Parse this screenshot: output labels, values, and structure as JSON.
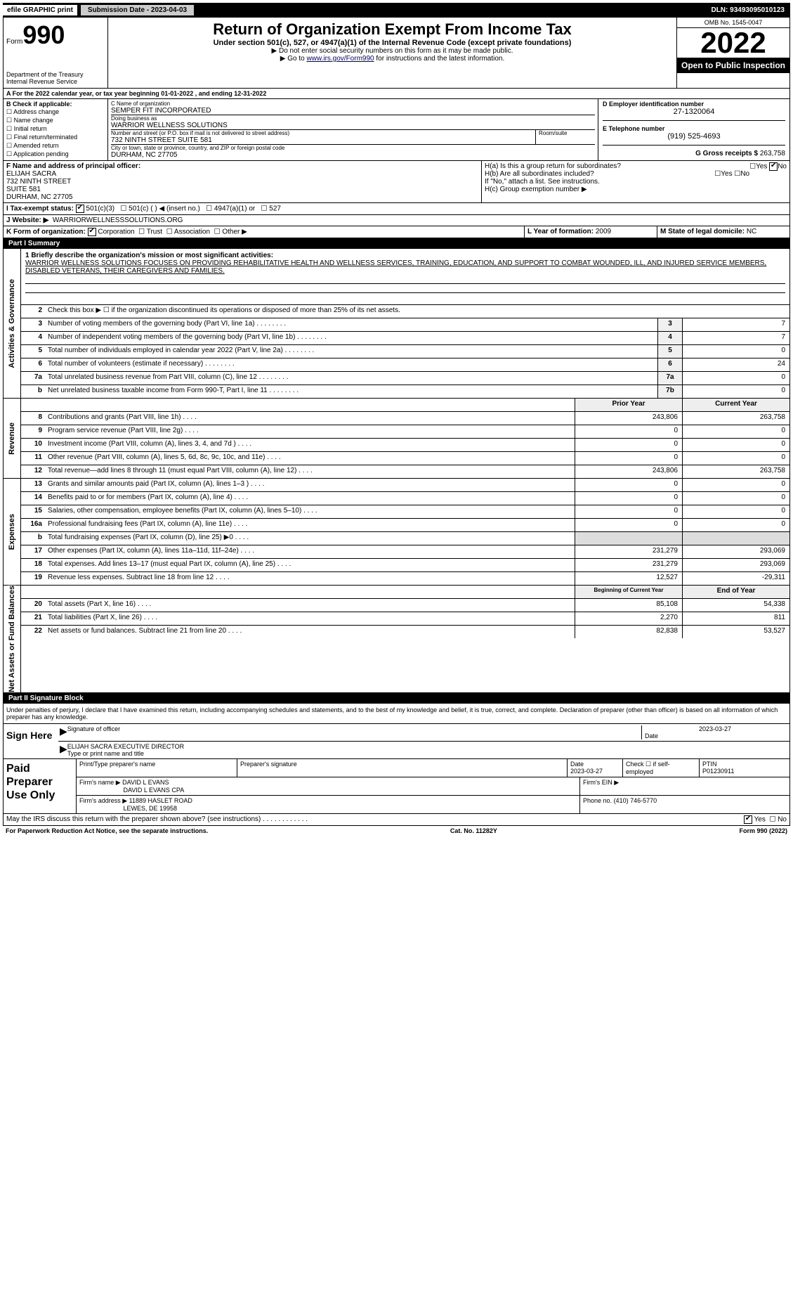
{
  "topbar": {
    "efile": "efile GRAPHIC print",
    "submission": "Submission Date - 2023-04-03",
    "dln": "DLN: 93493095010123"
  },
  "header": {
    "form_prefix": "Form",
    "form_number": "990",
    "dept": "Department of the Treasury Internal Revenue Service",
    "title": "Return of Organization Exempt From Income Tax",
    "subtitle": "Under section 501(c), 527, or 4947(a)(1) of the Internal Revenue Code (except private foundations)",
    "note1": "▶ Do not enter social security numbers on this form as it may be made public.",
    "note2_pre": "▶ Go to ",
    "note2_link": "www.irs.gov/Form990",
    "note2_post": " for instructions and the latest information.",
    "omb": "OMB No. 1545-0047",
    "year": "2022",
    "open": "Open to Public Inspection"
  },
  "row_a": "A For the 2022 calendar year, or tax year beginning 01-01-2022    , and ending 12-31-2022",
  "col_b": {
    "header": "B Check if applicable:",
    "items": [
      "Address change",
      "Name change",
      "Initial return",
      "Final return/terminated",
      "Amended return",
      "Application pending"
    ]
  },
  "block_c": {
    "name_lbl": "C Name of organization",
    "name": "SEMPER FIT INCORPORATED",
    "dba_lbl": "Doing business as",
    "dba": "WARRIOR WELLNESS SOLUTIONS",
    "addr_lbl": "Number and street (or P.O. box if mail is not delivered to street address)",
    "room_lbl": "Room/suite",
    "addr": "732 NINTH STREET SUITE 581",
    "city_lbl": "City or town, state or province, country, and ZIP or foreign postal code",
    "city": "DURHAM, NC  27705"
  },
  "block_d": {
    "lbl": "D Employer identification number",
    "val": "27-1320064"
  },
  "block_e": {
    "lbl": "E Telephone number",
    "val": "(919) 525-4693"
  },
  "block_g": {
    "lbl": "G Gross receipts $",
    "val": "263,758"
  },
  "block_f": {
    "lbl": "F  Name and address of principal officer:",
    "name": "ELIJAH SACRA",
    "addr1": "732 NINTH STREET",
    "addr2": "SUITE 581",
    "city": "DURHAM, NC  27705"
  },
  "block_h": {
    "ha": "H(a)  Is this a group return for subordinates?",
    "hb": "H(b)  Are all subordinates included?",
    "hb_note": "If \"No,\" attach a list. See instructions.",
    "hc": "H(c)  Group exemption number ▶",
    "yes": "Yes",
    "no": "No"
  },
  "row_i": {
    "lbl": "I   Tax-exempt status:",
    "opts": [
      "501(c)(3)",
      "501(c) (   ) ◀ (insert no.)",
      "4947(a)(1) or",
      "527"
    ]
  },
  "row_j": {
    "lbl": "J   Website: ▶",
    "val": "WARRIORWELLNESSSOLUTIONS.ORG"
  },
  "row_k": {
    "lbl": "K Form of organization:",
    "opts": [
      "Corporation",
      "Trust",
      "Association",
      "Other ▶"
    ]
  },
  "row_l": {
    "lbl": "L Year of formation:",
    "val": "2009"
  },
  "row_m": {
    "lbl": "M State of legal domicile:",
    "val": "NC"
  },
  "part1": "Part I    Summary",
  "section_labels": {
    "gov": "Activities & Governance",
    "rev": "Revenue",
    "exp": "Expenses",
    "net": "Net Assets or Fund Balances"
  },
  "mission": {
    "lbl": "1  Briefly describe the organization's mission or most significant activities:",
    "text": "WARRIOR WELLNESS SOLUTIONS FOCUSES ON PROVIDING REHABILITATIVE HEALTH AND WELLNESS SERVICES, TRAINING, EDUCATION, AND SUPPORT TO COMBAT WOUNDED, ILL, AND INJURED SERVICE MEMBERS, DISABLED VETERANS, THEIR CAREGIVERS AND FAMILIES."
  },
  "gov_lines": [
    {
      "n": "2",
      "d": "Check this box ▶ ☐  if the organization discontinued its operations or disposed of more than 25% of its net assets.",
      "box": "",
      "v": ""
    },
    {
      "n": "3",
      "d": "Number of voting members of the governing body (Part VI, line 1a)",
      "box": "3",
      "v": "7"
    },
    {
      "n": "4",
      "d": "Number of independent voting members of the governing body (Part VI, line 1b)",
      "box": "4",
      "v": "7"
    },
    {
      "n": "5",
      "d": "Total number of individuals employed in calendar year 2022 (Part V, line 2a)",
      "box": "5",
      "v": "0"
    },
    {
      "n": "6",
      "d": "Total number of volunteers (estimate if necessary)",
      "box": "6",
      "v": "24"
    },
    {
      "n": "7a",
      "d": "Total unrelated business revenue from Part VIII, column (C), line 12",
      "box": "7a",
      "v": "0"
    },
    {
      "n": "b",
      "d": "Net unrelated business taxable income from Form 990-T, Part I, line 11",
      "box": "7b",
      "v": "0"
    }
  ],
  "two_col_header": {
    "prior": "Prior Year",
    "current": "Current Year"
  },
  "rev_lines": [
    {
      "n": "8",
      "d": "Contributions and grants (Part VIII, line 1h)",
      "p": "243,806",
      "c": "263,758"
    },
    {
      "n": "9",
      "d": "Program service revenue (Part VIII, line 2g)",
      "p": "0",
      "c": "0"
    },
    {
      "n": "10",
      "d": "Investment income (Part VIII, column (A), lines 3, 4, and 7d )",
      "p": "0",
      "c": "0"
    },
    {
      "n": "11",
      "d": "Other revenue (Part VIII, column (A), lines 5, 6d, 8c, 9c, 10c, and 11e)",
      "p": "0",
      "c": "0"
    },
    {
      "n": "12",
      "d": "Total revenue—add lines 8 through 11 (must equal Part VIII, column (A), line 12)",
      "p": "243,806",
      "c": "263,758"
    }
  ],
  "exp_lines": [
    {
      "n": "13",
      "d": "Grants and similar amounts paid (Part IX, column (A), lines 1–3 )",
      "p": "0",
      "c": "0"
    },
    {
      "n": "14",
      "d": "Benefits paid to or for members (Part IX, column (A), line 4)",
      "p": "0",
      "c": "0"
    },
    {
      "n": "15",
      "d": "Salaries, other compensation, employee benefits (Part IX, column (A), lines 5–10)",
      "p": "0",
      "c": "0"
    },
    {
      "n": "16a",
      "d": "Professional fundraising fees (Part IX, column (A), line 11e)",
      "p": "0",
      "c": "0"
    },
    {
      "n": "b",
      "d": "Total fundraising expenses (Part IX, column (D), line 25) ▶0",
      "p": "",
      "c": "",
      "shade": true
    },
    {
      "n": "17",
      "d": "Other expenses (Part IX, column (A), lines 11a–11d, 11f–24e)",
      "p": "231,279",
      "c": "293,069"
    },
    {
      "n": "18",
      "d": "Total expenses. Add lines 13–17 (must equal Part IX, column (A), line 25)",
      "p": "231,279",
      "c": "293,069"
    },
    {
      "n": "19",
      "d": "Revenue less expenses. Subtract line 18 from line 12",
      "p": "12,527",
      "c": "-29,311"
    }
  ],
  "net_header": {
    "begin": "Beginning of Current Year",
    "end": "End of Year"
  },
  "net_lines": [
    {
      "n": "20",
      "d": "Total assets (Part X, line 16)",
      "p": "85,108",
      "c": "54,338"
    },
    {
      "n": "21",
      "d": "Total liabilities (Part X, line 26)",
      "p": "2,270",
      "c": "811"
    },
    {
      "n": "22",
      "d": "Net assets or fund balances. Subtract line 21 from line 20",
      "p": "82,838",
      "c": "53,527"
    }
  ],
  "part2": "Part II    Signature Block",
  "penalties": "Under penalties of perjury, I declare that I have examined this return, including accompanying schedules and statements, and to the best of my knowledge and belief, it is true, correct, and complete. Declaration of preparer (other than officer) is based on all information of which preparer has any knowledge.",
  "sign": {
    "here": "Sign Here",
    "sig_officer": "Signature of officer",
    "date": "Date",
    "date_val": "2023-03-27",
    "name_title": "ELIJAH SACRA  EXECUTIVE DIRECTOR",
    "name_lbl": "Type or print name and title"
  },
  "paid": {
    "title": "Paid Preparer Use Only",
    "print_lbl": "Print/Type preparer's name",
    "sig_lbl": "Preparer's signature",
    "date_lbl": "Date",
    "date_val": "2023-03-27",
    "check_lbl": "Check ☐ if self-employed",
    "ptin_lbl": "PTIN",
    "ptin": "P01230911",
    "firm_name_lbl": "Firm's name    ▶",
    "firm_name": "DAVID L EVANS",
    "firm_name2": "DAVID L EVANS CPA",
    "firm_ein_lbl": "Firm's EIN ▶",
    "firm_addr_lbl": "Firm's address ▶",
    "firm_addr": "11889 HASLET ROAD",
    "firm_city": "LEWES, DE  19958",
    "phone_lbl": "Phone no.",
    "phone": "(410) 746-5770"
  },
  "discuss": "May the IRS discuss this return with the preparer shown above? (see instructions)",
  "footer": {
    "left": "For Paperwork Reduction Act Notice, see the separate instructions.",
    "mid": "Cat. No. 11282Y",
    "right": "Form 990 (2022)"
  }
}
